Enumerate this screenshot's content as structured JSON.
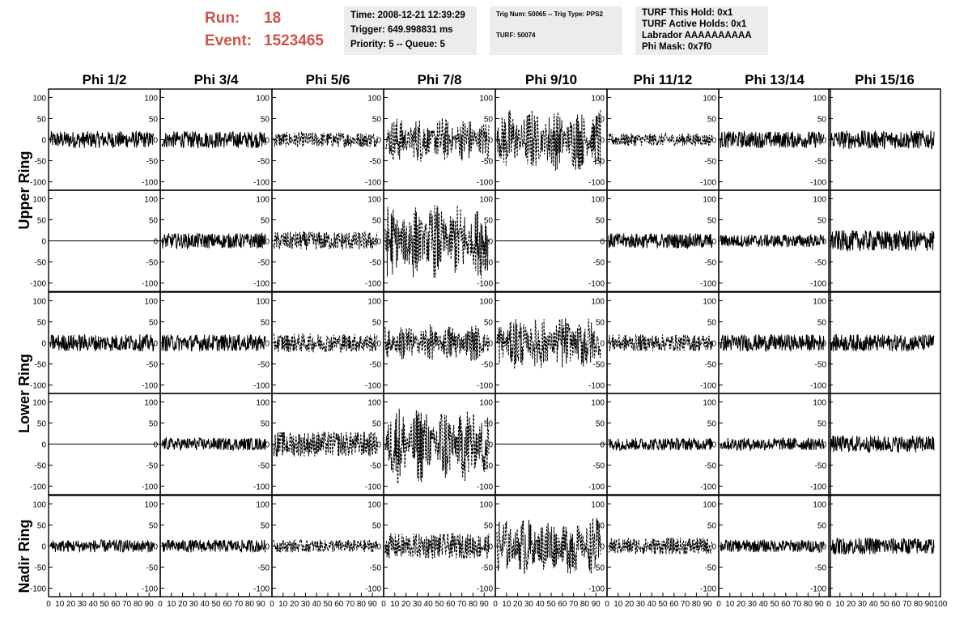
{
  "header": {
    "run_label": "Run:",
    "run_value": "18",
    "event_label": "Event:",
    "event_value": "1523465",
    "time": "Time: 2008-12-21 12:39:29",
    "trigger": "Trigger: 649.998831 ms",
    "priority": "Priority: 5 -- Queue: 5",
    "trig_num": "Trig Num: 50065 -- Trig Type: PPS2",
    "turf": "TURF: 50074",
    "turf_this_hold": "TURF This Hold: 0x1",
    "turf_active_holds": "TURF Active Holds: 0x1",
    "labrador": "Labrador AAAAAAAAAA",
    "phi_mask": "Phi Mask: 0x7f0"
  },
  "columns": [
    "Phi 1/2",
    "Phi 3/4",
    "Phi 5/6",
    "Phi 7/8",
    "Phi 9/10",
    "Phi 11/12",
    "Phi 13/14",
    "Phi 15/16"
  ],
  "ring_labels": [
    "Upper Ring",
    "Lower Ring",
    "Nadir Ring"
  ],
  "y_ticks": [
    "100",
    "50",
    "0",
    "-50",
    "-100"
  ],
  "x_ticks": [
    "0",
    "10",
    "20",
    "30",
    "40",
    "50",
    "60",
    "70",
    "80",
    "90",
    "100"
  ],
  "colors": {
    "header_text": "#d0524a",
    "info_box": "#ececec",
    "trace": "#000000"
  },
  "chart_data": {
    "type": "line",
    "description_rows": [
      "Upper Ring (row 1)",
      "Upper Ring (row 2)",
      "Lower Ring (row 1)",
      "Lower Ring (row 2)",
      "Nadir Ring"
    ],
    "xlim": [
      0,
      100
    ],
    "ylim": [
      -120,
      120
    ],
    "panels_amplitude": [
      [
        20,
        20,
        18,
        55,
        75,
        15,
        20,
        22
      ],
      [
        0,
        18,
        22,
        90,
        0,
        18,
        15,
        25
      ],
      [
        20,
        20,
        22,
        45,
        65,
        20,
        20,
        20
      ],
      [
        0,
        15,
        30,
        95,
        0,
        15,
        15,
        20
      ],
      [
        15,
        15,
        15,
        30,
        70,
        20,
        15,
        20
      ]
    ],
    "panels_dashed": [
      [
        false,
        false,
        true,
        true,
        true,
        true,
        false,
        false
      ],
      [
        false,
        false,
        true,
        true,
        false,
        false,
        false,
        false
      ],
      [
        false,
        false,
        true,
        true,
        true,
        true,
        false,
        false
      ],
      [
        false,
        false,
        true,
        true,
        false,
        false,
        false,
        false
      ],
      [
        false,
        false,
        true,
        true,
        true,
        true,
        false,
        false
      ]
    ]
  }
}
